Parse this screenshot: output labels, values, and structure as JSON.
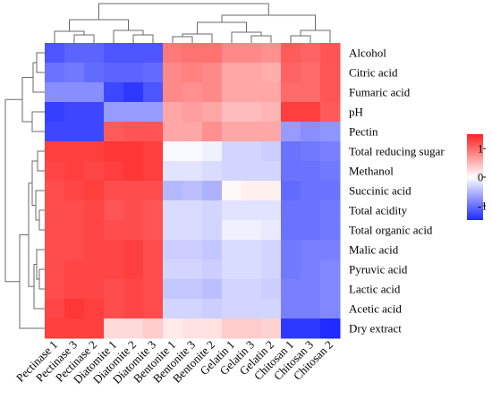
{
  "chart_data": {
    "type": "heatmap",
    "rows": [
      "Alcohol",
      "Citric acid",
      "Fumaric acid",
      "pH",
      "Pectin",
      "Total reducing sugar",
      "Methanol",
      "Succinic acid",
      "Total acidity",
      "Total organic acid",
      "Malic acid",
      "Pyruvic acid",
      "Lactic acid",
      "Acetic acid",
      "Dry extract"
    ],
    "columns": [
      "Pectinase 1",
      "Pectinase 3",
      "Pectinase 2",
      "Diatomite 1",
      "Diatomite 2",
      "Diatomite 3",
      "Bentonite 1",
      "Bentonite 3",
      "Bentonite 2",
      "Gelatin 1",
      "Gelatin 3",
      "Gelatin 2",
      "Chitosan 1",
      "Chitosan 3",
      "Chitosan 2"
    ],
    "values": [
      [
        -1.2,
        -1.1,
        -1.1,
        -1.2,
        -1.2,
        -1.2,
        0.9,
        0.95,
        0.95,
        0.8,
        0.8,
        0.75,
        1.1,
        1.05,
        1.15
      ],
      [
        -1.0,
        -0.95,
        -1.05,
        -1.1,
        -1.1,
        -1.05,
        0.8,
        0.85,
        0.8,
        0.6,
        0.6,
        0.55,
        1.05,
        1.0,
        1.15
      ],
      [
        -0.8,
        -0.8,
        -0.8,
        -1.3,
        -1.4,
        -1.2,
        0.8,
        0.75,
        0.8,
        0.6,
        0.6,
        0.6,
        1.0,
        1.0,
        1.15
      ],
      [
        -1.35,
        -1.3,
        -1.3,
        -0.7,
        -0.7,
        -0.7,
        0.6,
        0.65,
        0.6,
        0.45,
        0.45,
        0.5,
        1.3,
        1.3,
        1.1
      ],
      [
        -1.3,
        -1.3,
        -1.3,
        1.1,
        1.15,
        1.15,
        0.6,
        0.6,
        0.75,
        0.6,
        0.6,
        0.6,
        -0.7,
        -0.8,
        -0.75
      ],
      [
        1.3,
        1.3,
        1.3,
        1.35,
        1.35,
        1.3,
        -0.05,
        -0.05,
        -0.1,
        -0.3,
        -0.3,
        -0.35,
        -1.0,
        -0.95,
        -0.9
      ],
      [
        1.25,
        1.3,
        1.25,
        1.3,
        1.35,
        1.3,
        -0.2,
        -0.2,
        -0.25,
        -0.3,
        -0.3,
        -0.3,
        -1.0,
        -1.0,
        -0.95
      ],
      [
        1.2,
        1.25,
        1.3,
        1.2,
        1.2,
        1.2,
        -0.5,
        -0.45,
        -0.55,
        0.05,
        0.1,
        0.1,
        -1.05,
        -1.0,
        -1.0
      ],
      [
        1.2,
        1.2,
        1.25,
        1.15,
        1.2,
        1.15,
        -0.25,
        -0.25,
        -0.3,
        -0.2,
        -0.2,
        -0.2,
        -1.0,
        -1.0,
        -0.95
      ],
      [
        1.2,
        1.2,
        1.25,
        1.2,
        1.2,
        1.15,
        -0.25,
        -0.25,
        -0.3,
        -0.1,
        -0.1,
        -0.15,
        -1.0,
        -1.0,
        -0.95
      ],
      [
        1.2,
        1.2,
        1.25,
        1.25,
        1.3,
        1.2,
        -0.35,
        -0.35,
        -0.4,
        -0.25,
        -0.25,
        -0.3,
        -0.95,
        -0.9,
        -0.9
      ],
      [
        1.2,
        1.25,
        1.25,
        1.25,
        1.3,
        1.2,
        -0.3,
        -0.3,
        -0.35,
        -0.25,
        -0.25,
        -0.3,
        -0.95,
        -0.9,
        -0.85
      ],
      [
        1.2,
        1.25,
        1.25,
        1.2,
        1.25,
        1.2,
        -0.4,
        -0.4,
        -0.45,
        -0.3,
        -0.3,
        -0.35,
        -0.9,
        -0.9,
        -0.85
      ],
      [
        1.25,
        1.35,
        1.3,
        1.2,
        1.25,
        1.2,
        -0.3,
        -0.3,
        -0.35,
        -0.3,
        -0.3,
        -0.3,
        -0.9,
        -0.9,
        -0.85
      ],
      [
        1.3,
        1.3,
        1.3,
        0.25,
        0.25,
        0.35,
        0.15,
        0.2,
        0.2,
        0.35,
        0.35,
        0.3,
        -1.4,
        -1.4,
        -1.5
      ]
    ],
    "colorbar": {
      "ticks": [
        1,
        0,
        -1
      ],
      "tick_labels": [
        "1",
        "0",
        "-1"
      ],
      "range": [
        -1.5,
        1.5
      ],
      "low_color": "#1f2bff",
      "mid_color": "#ffffff",
      "high_color": "#ff2020"
    },
    "dendrogram_rows": true,
    "dendrogram_columns": true,
    "legend_placement": "right",
    "title": "",
    "xlabel": "",
    "ylabel": ""
  }
}
